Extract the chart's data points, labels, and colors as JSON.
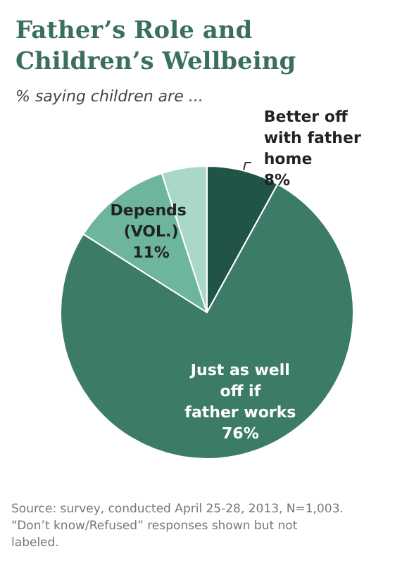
{
  "chart_data": {
    "type": "pie",
    "title": "Father’s Role and Children’s Wellbeing",
    "subtitle": "% saying children are ...",
    "categories": [
      "Better off with father home",
      "Just as well off if father works",
      "Depends (VOL.)",
      null
    ],
    "values": [
      8,
      76,
      11,
      5
    ],
    "value_labels": [
      "8%",
      "76%",
      "11%",
      null
    ],
    "colors": [
      "#1f5446",
      "#3d7b69",
      "#6db59c",
      "#a9d8c7"
    ],
    "legend": false,
    "annotations": [
      "Source: survey, conducted April 25-28, 2013, N=1,003. “Don’t know/Refused” responses shown but not labeled."
    ]
  }
}
